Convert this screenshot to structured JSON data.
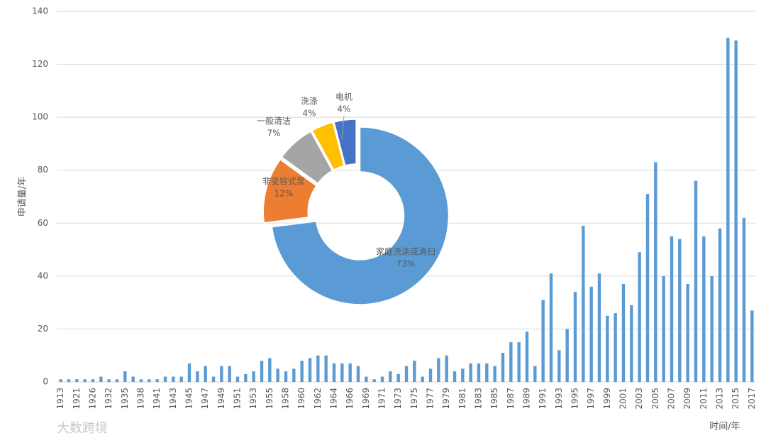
{
  "chart_data": [
    {
      "type": "bar",
      "ylabel": "申请量/年",
      "xlabel": "时间/年",
      "categories": [
        "1913",
        null,
        "1921",
        null,
        "1926",
        null,
        "1932",
        null,
        "1935",
        null,
        "1938",
        null,
        "1941",
        null,
        "1943",
        null,
        "1945",
        null,
        "1947",
        null,
        "1949",
        null,
        "1951",
        null,
        "1953",
        null,
        "1955",
        null,
        "1958",
        null,
        "1960",
        null,
        "1962",
        null,
        "1964",
        null,
        "1966",
        null,
        "1969",
        null,
        "1971",
        null,
        "1973",
        null,
        "1975",
        null,
        "1977",
        null,
        "1979",
        null,
        "1981",
        null,
        "1983",
        null,
        "1985",
        null,
        "1987",
        null,
        "1989",
        null,
        "1991",
        null,
        "1993",
        null,
        "1995",
        null,
        "1997",
        null,
        "1999",
        null,
        "2001",
        null,
        "2003",
        null,
        "2005",
        null,
        "2007",
        null,
        "2009",
        null,
        "2011",
        null,
        "2013",
        null,
        "2015",
        null,
        "2017"
      ],
      "values": [
        1,
        1,
        1,
        1,
        1,
        2,
        1,
        1,
        4,
        2,
        1,
        1,
        1,
        2,
        2,
        2,
        7,
        4,
        6,
        2,
        6,
        6,
        2,
        3,
        4,
        8,
        9,
        5,
        4,
        5,
        8,
        9,
        10,
        10,
        7,
        7,
        7,
        6,
        2,
        1,
        2,
        4,
        3,
        6,
        8,
        2,
        5,
        9,
        10,
        4,
        5,
        7,
        7,
        7,
        6,
        11,
        15,
        15,
        19,
        6,
        31,
        41,
        12,
        20,
        34,
        59,
        36,
        41,
        25,
        26,
        37,
        29,
        49,
        71,
        83,
        40,
        55,
        54,
        37,
        76,
        55,
        40,
        58,
        130,
        129,
        62,
        27
      ],
      "color": "#5b9bd5",
      "ylim": [
        0,
        140
      ],
      "yticks": [
        0,
        20,
        40,
        60,
        80,
        100,
        120,
        140
      ],
      "grid": true
    },
    {
      "type": "donut",
      "categories": [
        "家庭洗涤或清扫",
        "非变容式泵",
        "一般清洁",
        "洗涤",
        "电机"
      ],
      "values": [
        73,
        12,
        7,
        4,
        4
      ],
      "value_labels": [
        "73%",
        "12%",
        "7%",
        "4%",
        "4%"
      ],
      "colors": [
        "#5b9bd5",
        "#ed7d31",
        "#a5a5a5",
        "#ffc000",
        "#4472c4"
      ]
    }
  ],
  "watermark": "大数跨境"
}
